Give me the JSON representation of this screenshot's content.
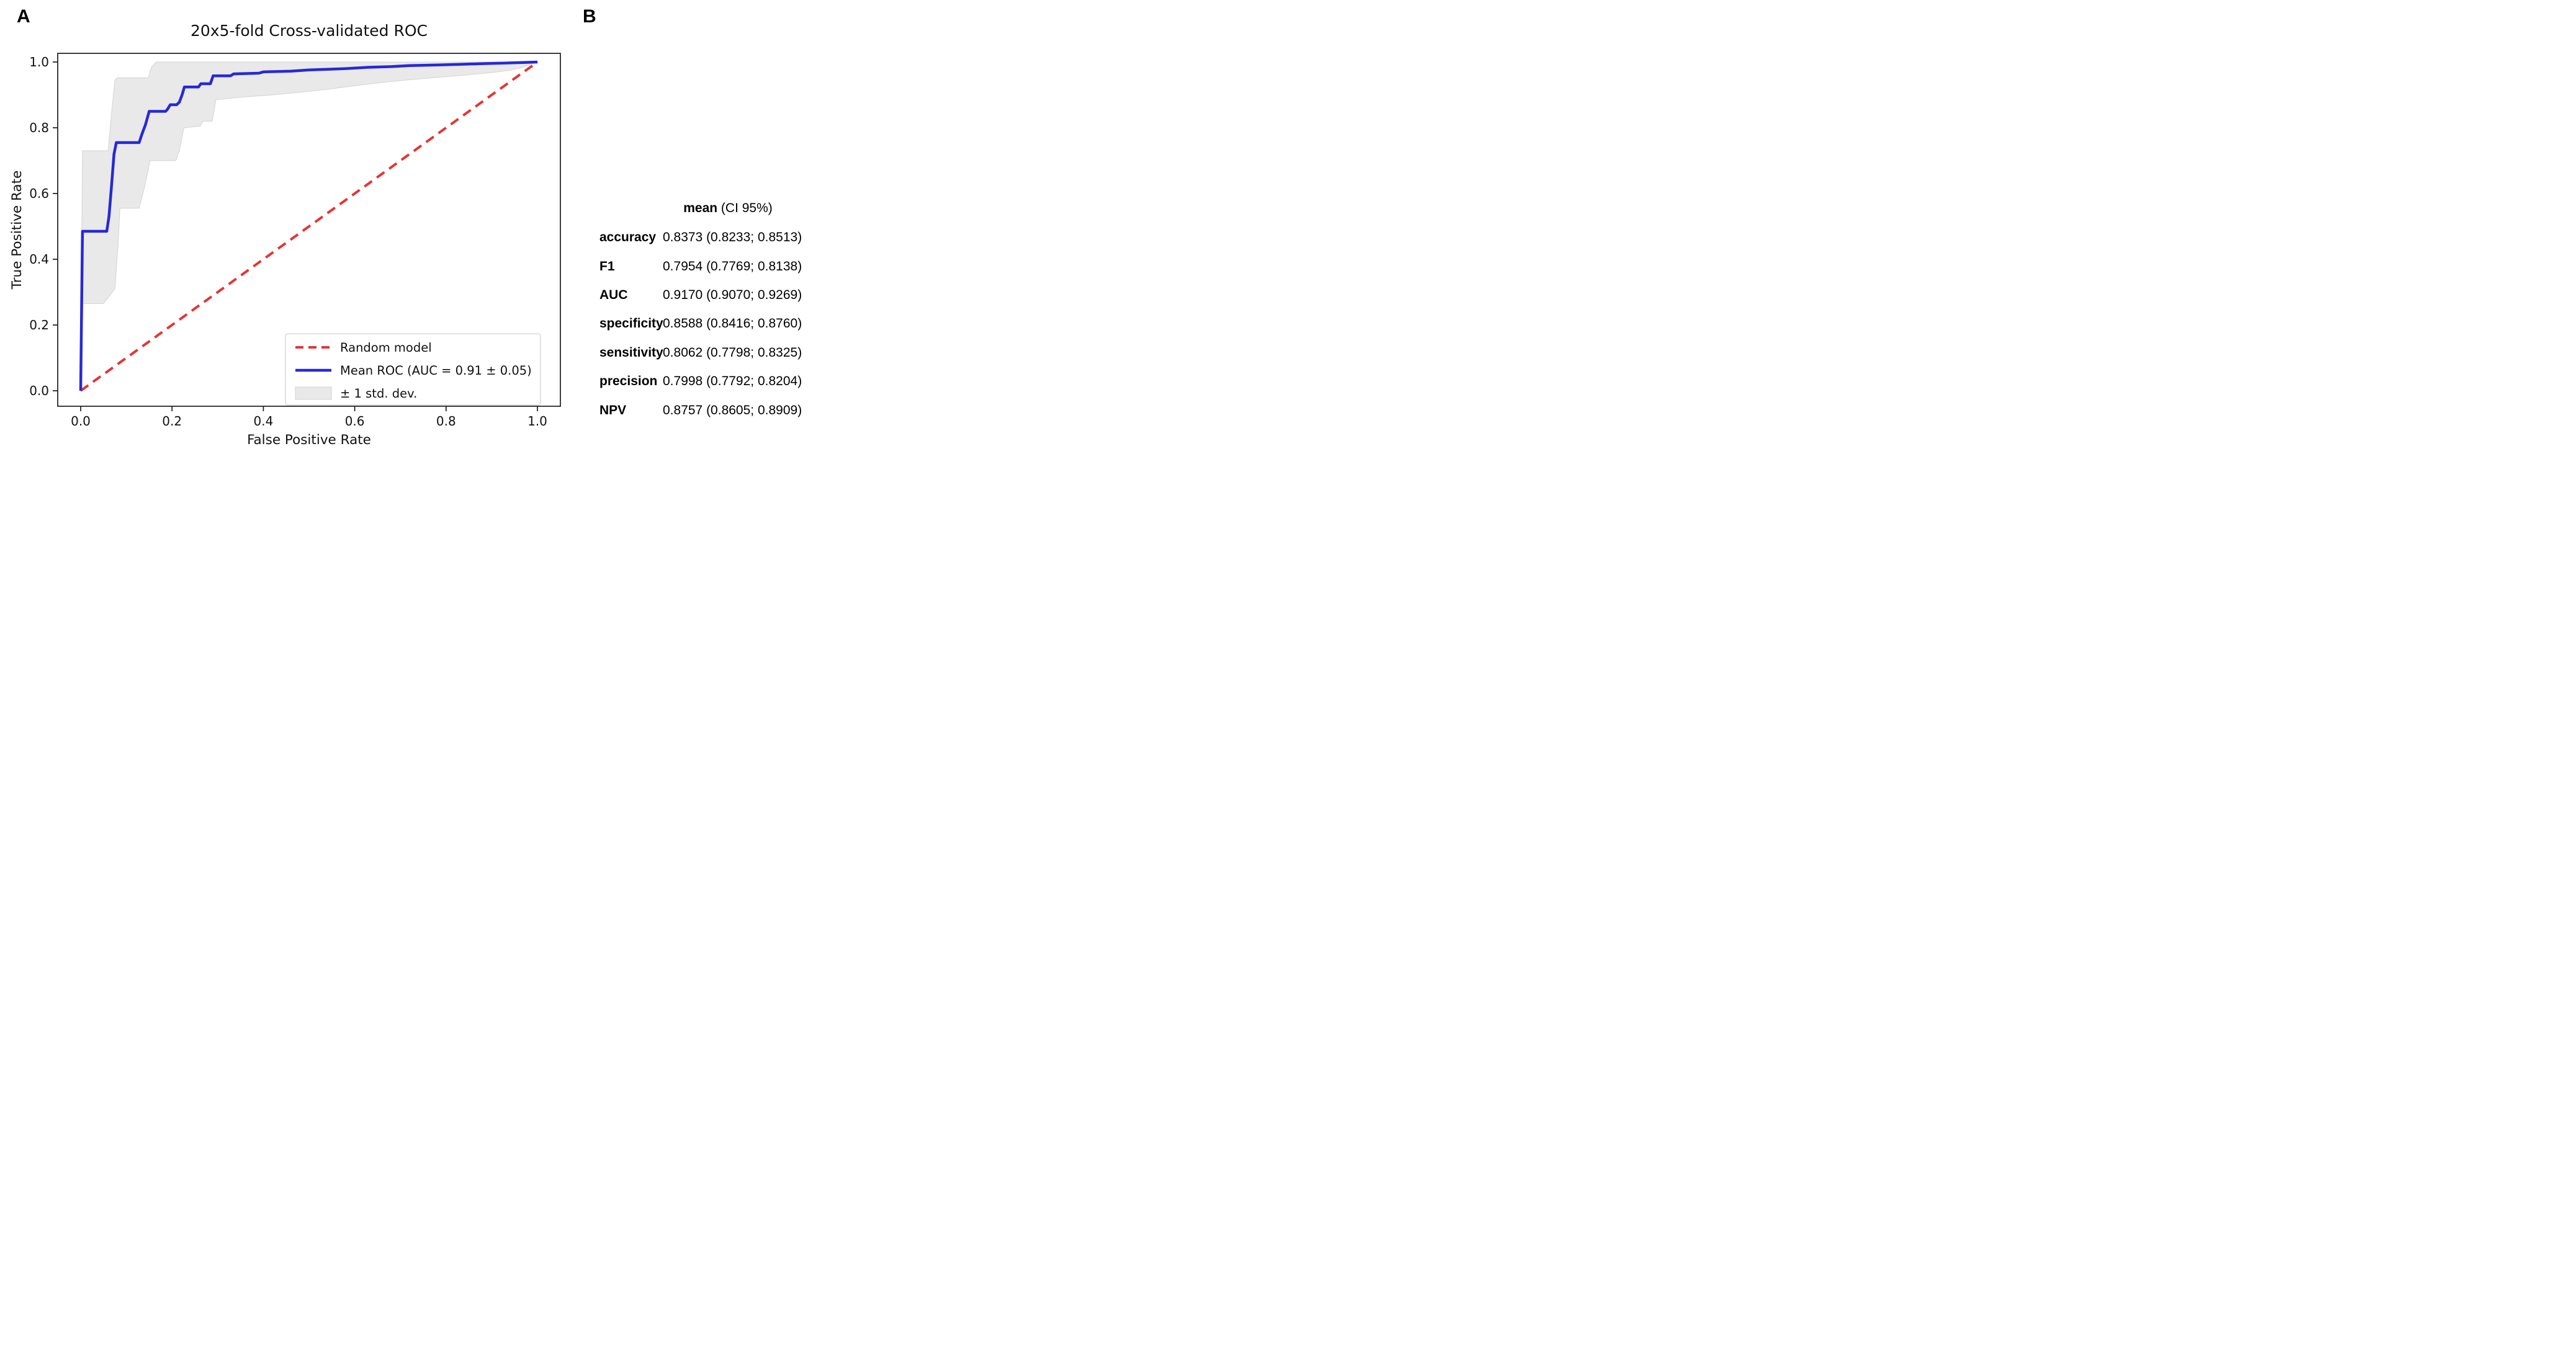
{
  "panels": {
    "a": "A",
    "b": "B"
  },
  "chart_data": {
    "type": "line",
    "title": "20x5-fold Cross-validated ROC",
    "xlabel": "False Positive Rate",
    "ylabel": "True Positive Rate",
    "xlim": [
      -0.05,
      1.05
    ],
    "ylim": [
      -0.05,
      1.05
    ],
    "grid": false,
    "legend_position": "lower right",
    "x_ticks": [
      0.0,
      0.2,
      0.4,
      0.6,
      0.8,
      1.0
    ],
    "y_ticks": [
      0.0,
      0.2,
      0.4,
      0.6,
      0.8,
      1.0
    ],
    "x_tick_labels": [
      "0.0",
      "0.2",
      "0.4",
      "0.6",
      "0.8",
      "1.0"
    ],
    "y_tick_labels": [
      "0.0",
      "0.2",
      "0.4",
      "0.6",
      "0.8",
      "1.0"
    ],
    "colors": {
      "mean_roc": "#2828d7",
      "random": "#e53434",
      "band_fill": "#e9e9e9",
      "band_edge": "#d4d4d4",
      "axis": "#1c1c1c",
      "legend_edge": "#d8d8d8",
      "legend_face": "#ffffff"
    },
    "series": [
      {
        "name": "Random model",
        "style": "dashed",
        "color_key": "random",
        "points": [
          [
            0,
            0
          ],
          [
            1,
            1
          ]
        ]
      },
      {
        "name": "Mean ROC (AUC = 0.91 ± 0.05)",
        "style": "solid",
        "color_key": "mean_roc",
        "points": [
          [
            0,
            0
          ],
          [
            0.004,
            0.485
          ],
          [
            0.057,
            0.485
          ],
          [
            0.062,
            0.53
          ],
          [
            0.068,
            0.63
          ],
          [
            0.073,
            0.72
          ],
          [
            0.078,
            0.755
          ],
          [
            0.128,
            0.755
          ],
          [
            0.134,
            0.78
          ],
          [
            0.142,
            0.81
          ],
          [
            0.15,
            0.85
          ],
          [
            0.186,
            0.85
          ],
          [
            0.19,
            0.856
          ],
          [
            0.196,
            0.87
          ],
          [
            0.21,
            0.87
          ],
          [
            0.216,
            0.878
          ],
          [
            0.222,
            0.9
          ],
          [
            0.227,
            0.924
          ],
          [
            0.258,
            0.924
          ],
          [
            0.263,
            0.934
          ],
          [
            0.284,
            0.934
          ],
          [
            0.29,
            0.958
          ],
          [
            0.328,
            0.958
          ],
          [
            0.335,
            0.964
          ],
          [
            0.39,
            0.966
          ],
          [
            0.4,
            0.97
          ],
          [
            0.46,
            0.972
          ],
          [
            0.5,
            0.976
          ],
          [
            0.54,
            0.978
          ],
          [
            0.58,
            0.98
          ],
          [
            0.63,
            0.984
          ],
          [
            0.68,
            0.986
          ],
          [
            0.72,
            0.989
          ],
          [
            0.78,
            0.991
          ],
          [
            0.83,
            0.993
          ],
          [
            0.88,
            0.995
          ],
          [
            0.93,
            0.997
          ],
          [
            1,
            1
          ]
        ]
      },
      {
        "name": "± 1 std. dev.",
        "style": "band",
        "color_key": "band_fill",
        "upper": [
          [
            0,
            0
          ],
          [
            0.004,
            0.73
          ],
          [
            0.06,
            0.73
          ],
          [
            0.068,
            0.85
          ],
          [
            0.075,
            0.945
          ],
          [
            0.08,
            0.952
          ],
          [
            0.148,
            0.952
          ],
          [
            0.155,
            0.985
          ],
          [
            0.165,
            1.0
          ],
          [
            1,
            1
          ]
        ],
        "lower": [
          [
            0,
            0
          ],
          [
            0.005,
            0.265
          ],
          [
            0.05,
            0.265
          ],
          [
            0.075,
            0.31
          ],
          [
            0.082,
            0.45
          ],
          [
            0.086,
            0.555
          ],
          [
            0.128,
            0.555
          ],
          [
            0.14,
            0.62
          ],
          [
            0.152,
            0.7
          ],
          [
            0.208,
            0.7
          ],
          [
            0.216,
            0.73
          ],
          [
            0.226,
            0.8
          ],
          [
            0.262,
            0.805
          ],
          [
            0.268,
            0.82
          ],
          [
            0.288,
            0.82
          ],
          [
            0.296,
            0.885
          ],
          [
            0.35,
            0.893
          ],
          [
            0.42,
            0.9
          ],
          [
            0.48,
            0.908
          ],
          [
            0.54,
            0.917
          ],
          [
            0.6,
            0.928
          ],
          [
            0.66,
            0.938
          ],
          [
            0.72,
            0.946
          ],
          [
            0.78,
            0.953
          ],
          [
            0.84,
            0.96
          ],
          [
            0.9,
            0.968
          ],
          [
            0.94,
            0.975
          ],
          [
            0.97,
            0.985
          ],
          [
            1,
            1
          ]
        ]
      }
    ]
  },
  "table": {
    "header_bold": "mean",
    "header_rest": " (CI 95%)",
    "rows": [
      {
        "label": "accuracy",
        "value": "0.8373 (0.8233; 0.8513)"
      },
      {
        "label": "F1",
        "value": "0.7954 (0.7769; 0.8138)"
      },
      {
        "label": "AUC",
        "value": "0.9170 (0.9070; 0.9269)"
      },
      {
        "label": "specificity",
        "value": "0.8588 (0.8416; 0.8760)"
      },
      {
        "label": "sensitivity",
        "value": "0.8062 (0.7798; 0.8325)"
      },
      {
        "label": "precision",
        "value": "0.7998 (0.7792; 0.8204)"
      },
      {
        "label": "NPV",
        "value": "0.8757 (0.8605; 0.8909)"
      }
    ]
  }
}
